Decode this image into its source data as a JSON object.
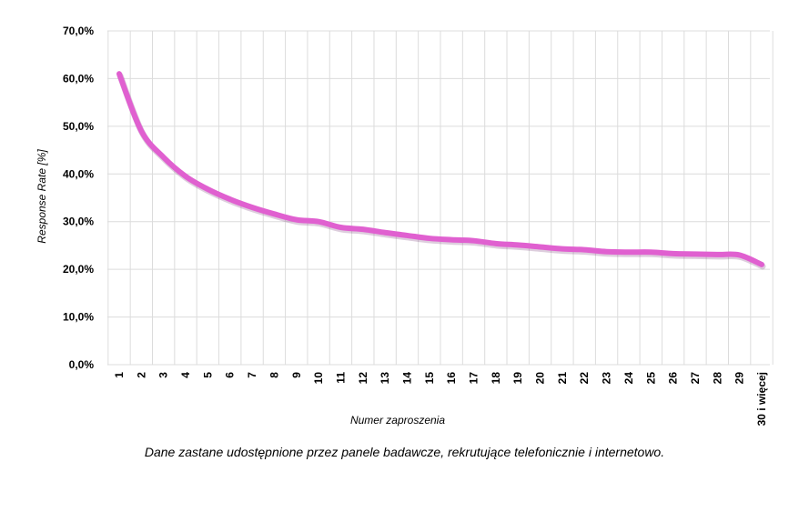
{
  "chart_data": {
    "type": "line",
    "title": "",
    "xlabel": "Numer zaproszenia",
    "ylabel": "Response Rate [%]",
    "categories": [
      "1",
      "2",
      "3",
      "4",
      "5",
      "6",
      "7",
      "8",
      "9",
      "10",
      "11",
      "12",
      "13",
      "14",
      "15",
      "16",
      "17",
      "18",
      "19",
      "20",
      "21",
      "22",
      "23",
      "24",
      "25",
      "26",
      "27",
      "28",
      "29",
      "30 i więcej"
    ],
    "series": [
      {
        "values": [
          61.0,
          49.0,
          43.5,
          39.5,
          36.8,
          34.7,
          33.0,
          31.6,
          30.4,
          30.0,
          28.8,
          28.4,
          27.7,
          27.1,
          26.5,
          26.2,
          26.0,
          25.4,
          25.1,
          24.7,
          24.3,
          24.1,
          23.7,
          23.6,
          23.6,
          23.3,
          23.2,
          23.1,
          23.0,
          21.0
        ],
        "color": "#e060d0"
      }
    ],
    "ylim": [
      0,
      70
    ],
    "yticks": [
      0,
      10,
      20,
      30,
      40,
      50,
      60,
      70
    ],
    "ytick_labels": [
      "0,0%",
      "10,0%",
      "20,0%",
      "30,0%",
      "40,0%",
      "50,0%",
      "60,0%",
      "70,0%"
    ],
    "grid": true
  },
  "caption": "Dane zastane udostępnione przez panele badawcze, rekrutujące telefonicznie i internetowo."
}
